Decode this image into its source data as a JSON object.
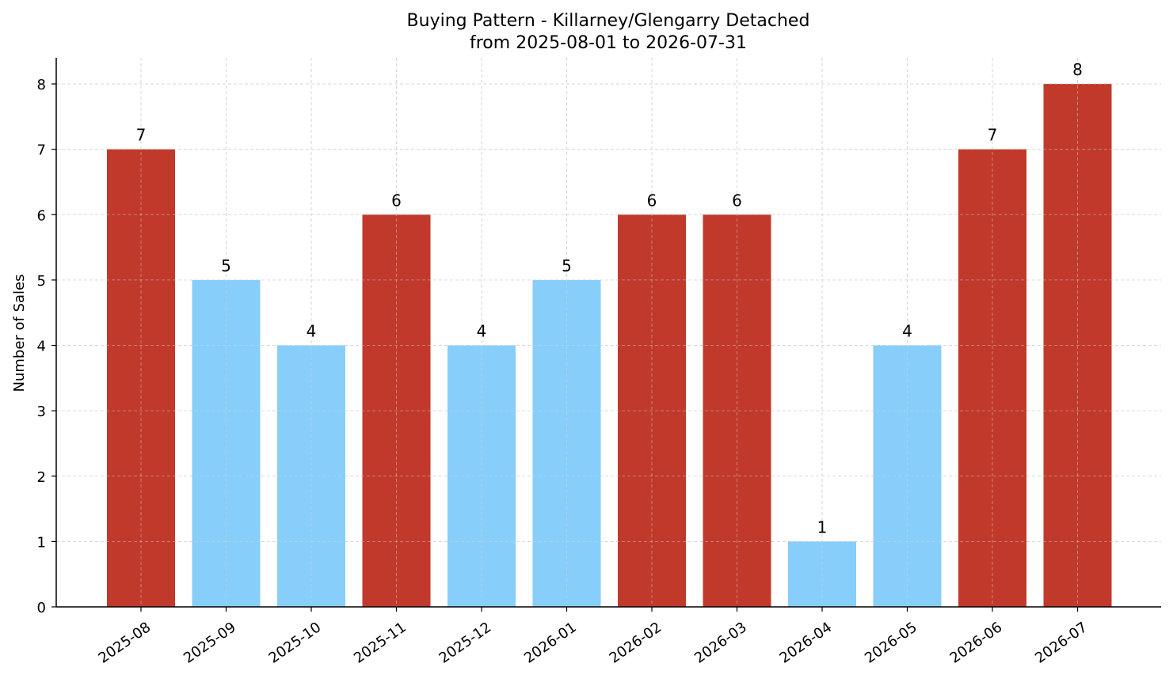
{
  "chart_data": {
    "type": "bar",
    "title": "Buying Pattern - Killarney/Glengarry Detached",
    "subtitle": "from 2025-08-01 to 2026-07-31",
    "xlabel": "",
    "ylabel": "Number of Sales",
    "categories": [
      "2025-08",
      "2025-09",
      "2025-10",
      "2025-11",
      "2025-12",
      "2026-01",
      "2026-02",
      "2026-03",
      "2026-04",
      "2026-05",
      "2026-06",
      "2026-07"
    ],
    "values": [
      7,
      5,
      4,
      6,
      4,
      5,
      6,
      6,
      1,
      4,
      7,
      8
    ],
    "highlighted": [
      true,
      false,
      false,
      true,
      false,
      false,
      true,
      true,
      false,
      false,
      true,
      true
    ],
    "data_labels": [
      "7",
      "5",
      "4",
      "6",
      "4",
      "5",
      "6",
      "6",
      "1",
      "4",
      "7",
      "8"
    ],
    "y_ticks": [
      "0",
      "1",
      "2",
      "3",
      "4",
      "5",
      "6",
      "7",
      "8"
    ],
    "ylim": [
      0,
      8.4
    ],
    "grid": true,
    "colors": {
      "highlight": "#c0392b",
      "normal": "#87cefa",
      "grid": "#d3d3d3",
      "axis": "#000000"
    }
  }
}
